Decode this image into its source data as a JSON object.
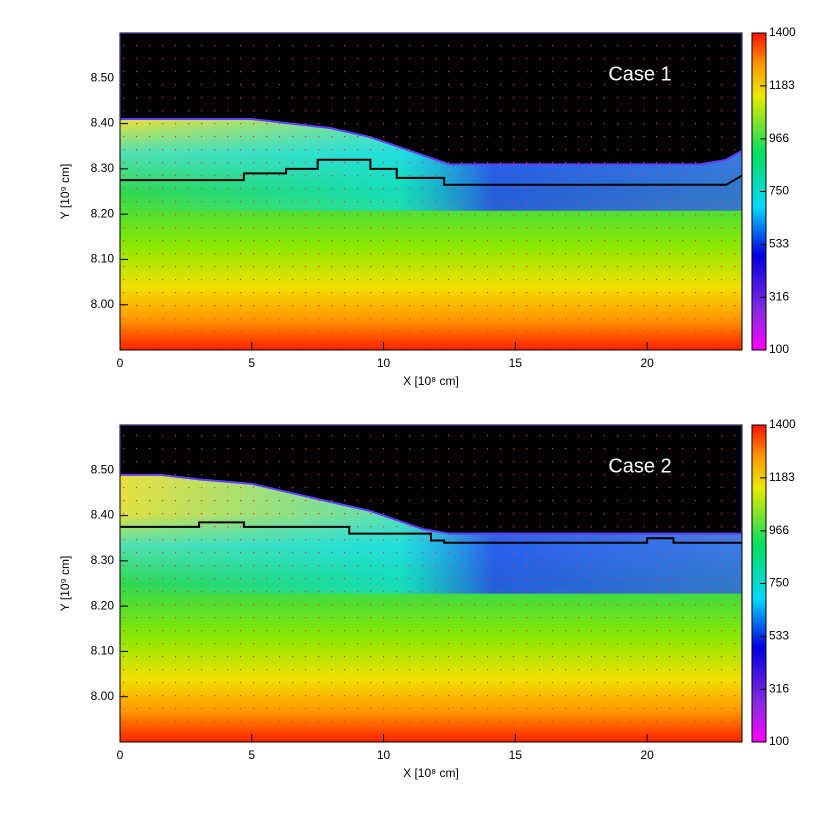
{
  "chart_data": [
    {
      "type": "contour",
      "title": "Case 1",
      "xlabel": "X [10⁸ cm]",
      "ylabel": "Y [10⁹ cm]",
      "xlim": [
        0,
        23.6
      ],
      "xticks": [
        0,
        5,
        10,
        15,
        20
      ],
      "ylim": [
        7.9,
        8.6
      ],
      "yticks": [
        {
          "value": 8,
          "label": "8.00"
        },
        {
          "value": 8.1,
          "label": "8.10"
        },
        {
          "value": 8.2,
          "label": "8.20"
        },
        {
          "value": 8.3,
          "label": "8.30"
        },
        {
          "value": 8.4,
          "label": "8.40"
        },
        {
          "value": 8.5,
          "label": "8.50"
        }
      ],
      "clim": [
        100,
        1400
      ],
      "cticks": [
        100,
        316,
        533,
        750,
        966,
        1183,
        1400
      ],
      "surface": {
        "x": [
          0,
          5,
          6.5,
          8,
          9.5,
          10.5,
          11.5,
          12.5,
          22,
          23,
          23.6
        ],
        "y": [
          8.41,
          8.41,
          8.4,
          8.39,
          8.37,
          8.35,
          8.33,
          8.31,
          8.31,
          8.32,
          8.34
        ]
      },
      "interface": {
        "x": [
          0,
          4.7,
          4.7,
          6.3,
          6.3,
          7.5,
          7.5,
          9.5,
          9.5,
          10.5,
          10.5,
          12.3,
          12.3,
          23,
          23.6
        ],
        "y": [
          8.275,
          8.275,
          8.29,
          8.29,
          8.3,
          8.3,
          8.32,
          8.32,
          8.3,
          8.3,
          8.28,
          8.28,
          8.265,
          8.265,
          8.285
        ]
      }
    },
    {
      "type": "contour",
      "title": "Case 2",
      "xlabel": "X [10⁸ cm]",
      "ylabel": "Y [10⁹ cm]",
      "xlim": [
        0,
        23.6
      ],
      "xticks": [
        0,
        5,
        10,
        15,
        20
      ],
      "ylim": [
        7.9,
        8.6
      ],
      "yticks": [
        {
          "value": 8,
          "label": "8.00"
        },
        {
          "value": 8.1,
          "label": "8.10"
        },
        {
          "value": 8.2,
          "label": "8.20"
        },
        {
          "value": 8.3,
          "label": "8.30"
        },
        {
          "value": 8.4,
          "label": "8.40"
        },
        {
          "value": 8.5,
          "label": "8.50"
        }
      ],
      "clim": [
        100,
        1400
      ],
      "cticks": [
        100,
        316,
        533,
        750,
        966,
        1183,
        1400
      ],
      "surface": {
        "x": [
          0,
          1.5,
          3,
          5,
          6.5,
          8,
          9.5,
          10.5,
          11.5,
          12.5,
          23.6
        ],
        "y": [
          8.49,
          8.49,
          8.48,
          8.47,
          8.45,
          8.43,
          8.41,
          8.39,
          8.37,
          8.36,
          8.36
        ]
      },
      "interface": {
        "x": [
          0,
          3,
          3,
          4.7,
          4.7,
          8.7,
          8.7,
          11.8,
          11.8,
          12.3,
          12.3,
          20,
          20,
          21,
          21,
          23.6
        ],
        "y": [
          8.375,
          8.375,
          8.385,
          8.385,
          8.375,
          8.375,
          8.36,
          8.36,
          8.345,
          8.345,
          8.34,
          8.34,
          8.35,
          8.35,
          8.34,
          8.34
        ]
      }
    }
  ]
}
